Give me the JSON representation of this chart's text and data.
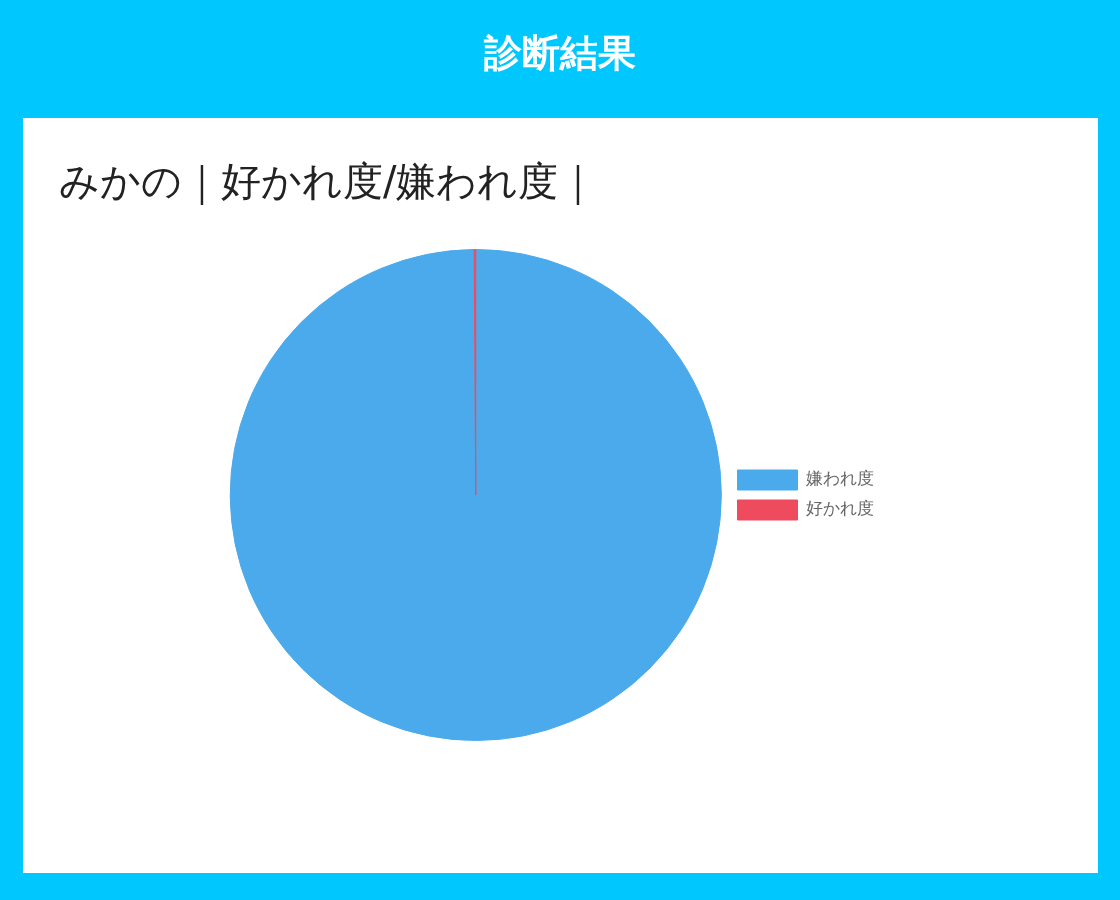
{
  "chart_data": {
    "type": "pie",
    "title": "診断結果",
    "subtitle": "みかの｜好かれ度/嫌われ度｜",
    "categories": [
      "嫌われ度",
      "好かれ度"
    ],
    "values": [
      99.9,
      0.1
    ],
    "colors": [
      "#4baaeb",
      "#ee4b5e"
    ],
    "legend": "right"
  }
}
